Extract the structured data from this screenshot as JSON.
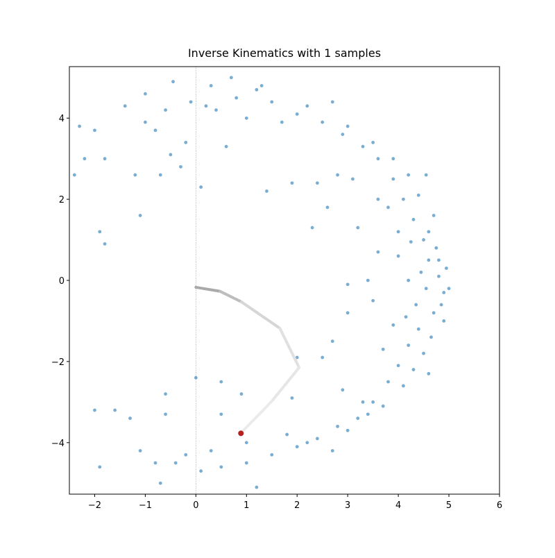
{
  "chart_data": {
    "type": "scatter",
    "title": "Inverse Kinematics with 1 samples",
    "xlim": [
      -2.5,
      6
    ],
    "ylim": [
      -5.27,
      5.27
    ],
    "xticks": [
      {
        "value": -2,
        "label": "−2"
      },
      {
        "value": -1,
        "label": "−1"
      },
      0,
      1,
      2,
      3,
      4,
      5,
      6
    ],
    "yticks": [
      {
        "value": -4,
        "label": "−4"
      },
      {
        "value": -2,
        "label": "−2"
      },
      0,
      2,
      4
    ],
    "vline_x": 0,
    "points": {
      "color": "#1f77b4",
      "x": [
        4.8,
        4.9,
        4.6,
        4.7,
        4.5,
        4.4,
        4.95,
        4.85,
        4.3,
        4.2,
        4.6,
        4.65,
        4.1,
        4.0,
        3.9,
        3.8,
        4.4,
        4.3,
        3.6,
        3.5,
        4.2,
        4.1,
        3.3,
        3.2,
        3.9,
        3.7,
        2.9,
        2.8,
        3.5,
        3.4,
        2.5,
        2.4,
        3.0,
        3.0,
        2.0,
        2.0,
        2.2,
        2.2,
        1.5,
        1.5,
        1.2,
        1.0,
        0.8,
        0.5,
        0.3,
        0.1,
        4.75,
        4.55,
        4.45,
        4.9,
        4.5,
        4.7,
        4.0,
        3.9,
        3.6,
        3.5,
        3.2,
        3.0,
        2.6,
        2.5,
        2.3,
        2.4,
        1.9,
        3.8,
        3.7,
        4.2,
        4.35,
        4.0,
        2.8,
        2.9,
        1.7,
        1.8,
        1.0,
        1.0,
        0.6,
        0.5,
        0.2,
        0.3,
        -0.1,
        -0.2,
        -0.3,
        -0.4,
        -0.6,
        -0.6,
        -0.8,
        -0.8,
        -1.0,
        -1.1,
        -1.2,
        -1.3,
        -1.4,
        -1.6,
        -1.8,
        -1.8,
        -1.9,
        -1.9,
        -2.0,
        -2.0,
        -2.2,
        -2.3,
        -2.4,
        -1.1,
        -0.7,
        -0.2,
        0.1,
        -0.45,
        0.7,
        1.3,
        0.4,
        -0.5,
        -1.0,
        4.55,
        4.6,
        3.3,
        3.6,
        4.8,
        5.0,
        4.25,
        4.15,
        2.7,
        2.7,
        1.4,
        1.9,
        2.0,
        2.7,
        3.0,
        3.4,
        3.1,
        -0.7,
        1.2,
        0.5,
        0.9,
        -0.6,
        0.0
      ],
      "y": [
        0.1,
        -0.3,
        0.5,
        -0.8,
        1.0,
        -1.2,
        0.3,
        -0.6,
        1.5,
        -1.6,
        1.2,
        -1.4,
        2.0,
        -2.1,
        2.5,
        -2.5,
        2.1,
        -2.2,
        3.0,
        -3.0,
        2.6,
        -2.6,
        3.3,
        -3.4,
        3.0,
        -3.1,
        3.6,
        -3.6,
        3.4,
        -3.3,
        3.9,
        -3.9,
        3.8,
        -3.7,
        4.1,
        -4.1,
        4.3,
        -4.0,
        4.4,
        -4.3,
        4.7,
        -4.5,
        4.5,
        -4.6,
        4.8,
        -4.7,
        0.8,
        -0.2,
        0.2,
        -1.0,
        -1.8,
        1.6,
        1.2,
        -1.1,
        0.7,
        -0.5,
        1.3,
        -0.8,
        1.8,
        -1.9,
        1.3,
        2.4,
        2.4,
        1.8,
        -1.7,
        0.0,
        -0.6,
        0.6,
        2.6,
        -2.7,
        3.9,
        -3.8,
        4.0,
        -4.0,
        3.3,
        -3.3,
        4.3,
        -4.2,
        4.4,
        -4.3,
        2.8,
        -4.5,
        4.2,
        -3.3,
        3.7,
        -4.5,
        4.6,
        -4.2,
        2.6,
        -3.4,
        4.3,
        -3.2,
        3.0,
        0.9,
        1.2,
        -4.6,
        3.7,
        -3.2,
        3.0,
        3.8,
        2.6,
        1.6,
        2.6,
        3.4,
        2.3,
        4.9,
        5.0,
        4.8,
        4.2,
        3.1,
        3.9,
        2.6,
        -2.3,
        -3.0,
        2.0,
        0.5,
        -0.2,
        0.95,
        -0.9,
        4.4,
        -4.2,
        2.2,
        -2.9,
        -1.9,
        -1.5,
        -0.1,
        0.0,
        2.5,
        -5.0,
        -5.1,
        -2.5,
        -2.8,
        -2.8,
        -2.4
      ]
    },
    "arm": {
      "x": [
        0,
        0.48,
        0.9,
        1.66,
        2.04,
        1.5,
        0.9
      ],
      "y": [
        -0.17,
        -0.27,
        -0.53,
        -1.18,
        -2.15,
        -2.98,
        -3.75
      ],
      "colors": [
        "#a9a9a9",
        "#bdbdbd",
        "#d6d6d6",
        "#e0e0e0",
        "#e6e6e6",
        "#ebebeb"
      ]
    },
    "target": {
      "x": 0.89,
      "y": -3.77,
      "color": "#b22222"
    }
  }
}
